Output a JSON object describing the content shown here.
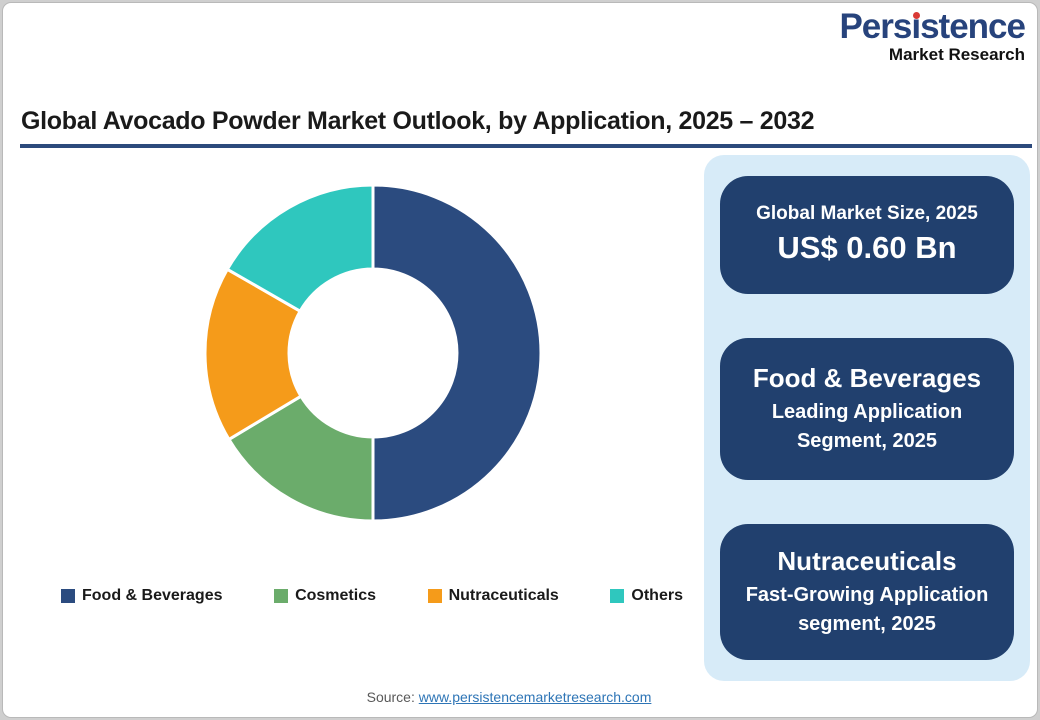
{
  "logo": {
    "brand_pre": "Pers",
    "brand_post": "stence",
    "brand_full": "Persistence",
    "tagline": "Market Research",
    "brand_color": "#27437C",
    "dot_color": "#D93A35"
  },
  "header": {
    "title": "Global Avocado Powder Market Outlook, by Application, 2025 – 2032",
    "underline_color": "#2C4A7C"
  },
  "chart_data": {
    "type": "pie",
    "subtype": "donut",
    "title": "Global Avocado Powder Market Outlook, by Application, 2025 – 2032",
    "categories": [
      "Food & Beverages",
      "Cosmetics",
      "Nutraceuticals",
      "Others"
    ],
    "values": [
      50,
      16.4,
      16.9,
      16.7
    ],
    "unit": "percent",
    "colors": [
      "#2B4B7F",
      "#6BAC6B",
      "#F59B1A",
      "#2FC7BE"
    ],
    "start_angle_deg": 0,
    "direction": "clockwise",
    "inner_radius_ratio": 0.5,
    "legend_position": "bottom"
  },
  "sidebar": {
    "background_color": "#D7EBF8",
    "card_color": "#21406E",
    "cards": [
      {
        "heading": "Global Market Size, 2025",
        "value": "US$ 0.60 Bn"
      },
      {
        "heading": "Food & Beverages",
        "sub": "Leading Application Segment, 2025"
      },
      {
        "heading": "Nutraceuticals",
        "sub": "Fast-Growing Application segment, 2025"
      }
    ]
  },
  "footer": {
    "source_label": "Source:",
    "source_link": "www.persistencemarketresearch.com"
  }
}
